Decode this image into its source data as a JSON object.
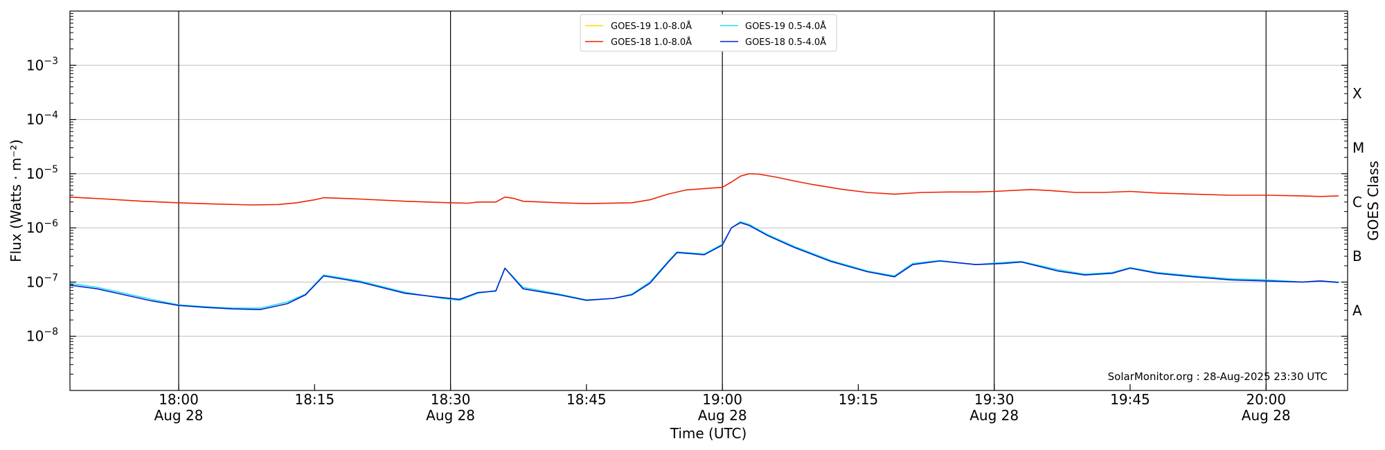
{
  "chart_data": {
    "type": "line",
    "title": "",
    "xlabel": "Time (UTC)",
    "ylabel": "Flux (Watts · m⁻²)",
    "ylabel_right": "GOES Class",
    "y_scale": "log",
    "ylim": [
      1e-09,
      0.01
    ],
    "xlim": [
      "2025-08-28 17:48",
      "2025-08-28 20:09"
    ],
    "grid": "horizontal at decades",
    "legend_position": "top-center",
    "credit": "SolarMonitor.org : 28-Aug-2025 23:30 UTC",
    "y_ticks": [
      {
        "value": 1e-08,
        "base": "10",
        "exp": "−8"
      },
      {
        "value": 1e-07,
        "base": "10",
        "exp": "−7"
      },
      {
        "value": 1e-06,
        "base": "10",
        "exp": "−6"
      },
      {
        "value": 1e-05,
        "base": "10",
        "exp": "−5"
      },
      {
        "value": 0.0001,
        "base": "10",
        "exp": "−4"
      },
      {
        "value": 0.001,
        "base": "10",
        "exp": "−3"
      }
    ],
    "x_ticks": [
      {
        "time": "2025-08-28 18:00",
        "line1": "18:00",
        "line2": "Aug 28"
      },
      {
        "time": "2025-08-28 18:15",
        "line1": "18:15",
        "line2": ""
      },
      {
        "time": "2025-08-28 18:30",
        "line1": "18:30",
        "line2": "Aug 28"
      },
      {
        "time": "2025-08-28 18:45",
        "line1": "18:45",
        "line2": ""
      },
      {
        "time": "2025-08-28 19:00",
        "line1": "19:00",
        "line2": "Aug 28"
      },
      {
        "time": "2025-08-28 19:15",
        "line1": "19:15",
        "line2": ""
      },
      {
        "time": "2025-08-28 19:30",
        "line1": "19:30",
        "line2": "Aug 28"
      },
      {
        "time": "2025-08-28 19:45",
        "line1": "19:45",
        "line2": ""
      },
      {
        "time": "2025-08-28 20:00",
        "line1": "20:00",
        "line2": "Aug 28"
      }
    ],
    "vertical_lines": [
      "2025-08-28 18:00",
      "2025-08-28 18:30",
      "2025-08-28 19:00",
      "2025-08-28 19:30",
      "2025-08-28 20:00"
    ],
    "goes_classes": [
      {
        "label": "X",
        "flux": 0.0003
      },
      {
        "label": "M",
        "flux": 3e-05
      },
      {
        "label": "C",
        "flux": 3e-06
      },
      {
        "label": "B",
        "flux": 3e-07
      },
      {
        "label": "A",
        "flux": 3e-08
      }
    ],
    "series": [
      {
        "name": "GOES-19 1.0-8.0Å",
        "color": "#ffd700",
        "x": [],
        "values": []
      },
      {
        "name": "GOES-18 1.0-8.0Å",
        "color": "#ee2200",
        "x": [
          "2025-08-28 17:48",
          "2025-08-28 17:52",
          "2025-08-28 17:56",
          "2025-08-28 18:00",
          "2025-08-28 18:04",
          "2025-08-28 18:08",
          "2025-08-28 18:11",
          "2025-08-28 18:13",
          "2025-08-28 18:15",
          "2025-08-28 18:16",
          "2025-08-28 18:20",
          "2025-08-28 18:25",
          "2025-08-28 18:30",
          "2025-08-28 18:32",
          "2025-08-28 18:33",
          "2025-08-28 18:35",
          "2025-08-28 18:36",
          "2025-08-28 18:37",
          "2025-08-28 18:38",
          "2025-08-28 18:42",
          "2025-08-28 18:45",
          "2025-08-28 18:50",
          "2025-08-28 18:52",
          "2025-08-28 18:54",
          "2025-08-28 18:56",
          "2025-08-28 18:58",
          "2025-08-28 19:00",
          "2025-08-28 19:01",
          "2025-08-28 19:02",
          "2025-08-28 19:03",
          "2025-08-28 19:04",
          "2025-08-28 19:06",
          "2025-08-28 19:08",
          "2025-08-28 19:10",
          "2025-08-28 19:13",
          "2025-08-28 19:16",
          "2025-08-28 19:19",
          "2025-08-28 19:22",
          "2025-08-28 19:25",
          "2025-08-28 19:28",
          "2025-08-28 19:30",
          "2025-08-28 19:34",
          "2025-08-28 19:36",
          "2025-08-28 19:39",
          "2025-08-28 19:42",
          "2025-08-28 19:45",
          "2025-08-28 19:48",
          "2025-08-28 19:52",
          "2025-08-28 19:56",
          "2025-08-28 20:00",
          "2025-08-28 20:04",
          "2025-08-28 20:06",
          "2025-08-28 20:08"
        ],
        "values": [
          3.7e-06,
          3.4e-06,
          3.1e-06,
          2.9e-06,
          2.75e-06,
          2.65e-06,
          2.7e-06,
          2.9e-06,
          3.3e-06,
          3.6e-06,
          3.4e-06,
          3.1e-06,
          2.9e-06,
          2.85e-06,
          3e-06,
          3e-06,
          3.7e-06,
          3.5e-06,
          3.1e-06,
          2.9e-06,
          2.8e-06,
          2.9e-06,
          3.3e-06,
          4.2e-06,
          5e-06,
          5.3e-06,
          5.6e-06,
          7e-06,
          9e-06,
          1e-05,
          9.8e-06,
          8.6e-06,
          7.3e-06,
          6.3e-06,
          5.2e-06,
          4.5e-06,
          4.2e-06,
          4.5e-06,
          4.6e-06,
          4.6e-06,
          4.7e-06,
          5.1e-06,
          4.9e-06,
          4.5e-06,
          4.5e-06,
          4.7e-06,
          4.4e-06,
          4.2e-06,
          4e-06,
          4e-06,
          3.9e-06,
          3.8e-06,
          3.9e-06
        ]
      },
      {
        "name": "GOES-19 0.5-4.0Å",
        "color": "#22ddee",
        "x": [
          "2025-08-28 17:48",
          "2025-08-28 17:51",
          "2025-08-28 17:54",
          "2025-08-28 17:57",
          "2025-08-28 18:00",
          "2025-08-28 18:03",
          "2025-08-28 18:06",
          "2025-08-28 18:09",
          "2025-08-28 18:12",
          "2025-08-28 18:14",
          "2025-08-28 18:16",
          "2025-08-28 18:20",
          "2025-08-28 18:25",
          "2025-08-28 18:29",
          "2025-08-28 18:31",
          "2025-08-28 18:33",
          "2025-08-28 18:35",
          "2025-08-28 18:36",
          "2025-08-28 18:38",
          "2025-08-28 18:42",
          "2025-08-28 18:45",
          "2025-08-28 18:48",
          "2025-08-28 18:50",
          "2025-08-28 18:52",
          "2025-08-28 18:54",
          "2025-08-28 18:55",
          "2025-08-28 18:58",
          "2025-08-28 19:00",
          "2025-08-28 19:01",
          "2025-08-28 19:02",
          "2025-08-28 19:03",
          "2025-08-28 19:05",
          "2025-08-28 19:08",
          "2025-08-28 19:12",
          "2025-08-28 19:16",
          "2025-08-28 19:19",
          "2025-08-28 19:21",
          "2025-08-28 19:24",
          "2025-08-28 19:28",
          "2025-08-28 19:31",
          "2025-08-28 19:33",
          "2025-08-28 19:37",
          "2025-08-28 19:40",
          "2025-08-28 19:43",
          "2025-08-28 19:45",
          "2025-08-28 19:48",
          "2025-08-28 19:52",
          "2025-08-28 19:56",
          "2025-08-28 20:00",
          "2025-08-28 20:04",
          "2025-08-28 20:06",
          "2025-08-28 20:08"
        ],
        "values": [
          9.5e-08,
          8e-08,
          6.2e-08,
          4.8e-08,
          3.8e-08,
          3.5e-08,
          3.3e-08,
          3.3e-08,
          4.3e-08,
          6e-08,
          1.35e-07,
          1.05e-07,
          6.5e-08,
          5e-08,
          4.6e-08,
          6.2e-08,
          7e-08,
          1.8e-07,
          8e-08,
          6e-08,
          4.7e-08,
          5e-08,
          6e-08,
          1e-07,
          2.4e-07,
          3.6e-07,
          3.3e-07,
          5e-07,
          1e-06,
          1.3e-06,
          1.15e-06,
          7.5e-07,
          4.5e-07,
          2.5e-07,
          1.6e-07,
          1.3e-07,
          2.2e-07,
          2.5e-07,
          2.1e-07,
          2.3e-07,
          2.4e-07,
          1.7e-07,
          1.4e-07,
          1.5e-07,
          1.85e-07,
          1.5e-07,
          1.3e-07,
          1.15e-07,
          1.1e-07,
          1e-07,
          1.05e-07,
          1e-07
        ]
      },
      {
        "name": "GOES-18 0.5-4.0Å",
        "color": "#0022cc",
        "x": [
          "2025-08-28 17:48",
          "2025-08-28 17:51",
          "2025-08-28 17:54",
          "2025-08-28 17:57",
          "2025-08-28 18:00",
          "2025-08-28 18:03",
          "2025-08-28 18:06",
          "2025-08-28 18:09",
          "2025-08-28 18:12",
          "2025-08-28 18:14",
          "2025-08-28 18:16",
          "2025-08-28 18:20",
          "2025-08-28 18:25",
          "2025-08-28 18:29",
          "2025-08-28 18:31",
          "2025-08-28 18:33",
          "2025-08-28 18:35",
          "2025-08-28 18:36",
          "2025-08-28 18:38",
          "2025-08-28 18:42",
          "2025-08-28 18:45",
          "2025-08-28 18:48",
          "2025-08-28 18:50",
          "2025-08-28 18:52",
          "2025-08-28 18:54",
          "2025-08-28 18:55",
          "2025-08-28 18:58",
          "2025-08-28 19:00",
          "2025-08-28 19:01",
          "2025-08-28 19:02",
          "2025-08-28 19:03",
          "2025-08-28 19:05",
          "2025-08-28 19:08",
          "2025-08-28 19:12",
          "2025-08-28 19:16",
          "2025-08-28 19:19",
          "2025-08-28 19:21",
          "2025-08-28 19:24",
          "2025-08-28 19:28",
          "2025-08-28 19:31",
          "2025-08-28 19:33",
          "2025-08-28 19:37",
          "2025-08-28 19:40",
          "2025-08-28 19:43",
          "2025-08-28 19:45",
          "2025-08-28 19:48",
          "2025-08-28 19:52",
          "2025-08-28 19:56",
          "2025-08-28 20:00",
          "2025-08-28 20:04",
          "2025-08-28 20:06",
          "2025-08-28 20:08"
        ],
        "values": [
          8.8e-08,
          7.5e-08,
          5.8e-08,
          4.5e-08,
          3.7e-08,
          3.4e-08,
          3.2e-08,
          3.1e-08,
          4e-08,
          5.8e-08,
          1.3e-07,
          1e-07,
          6.2e-08,
          5.2e-08,
          4.8e-08,
          6.4e-08,
          6.8e-08,
          1.8e-07,
          7.5e-08,
          5.8e-08,
          4.6e-08,
          5e-08,
          5.8e-08,
          9.5e-08,
          2.3e-07,
          3.5e-07,
          3.2e-07,
          4.8e-07,
          1e-06,
          1.25e-06,
          1.1e-06,
          7.2e-07,
          4.3e-07,
          2.4e-07,
          1.55e-07,
          1.25e-07,
          2.1e-07,
          2.45e-07,
          2.1e-07,
          2.2e-07,
          2.35e-07,
          1.6e-07,
          1.35e-07,
          1.45e-07,
          1.8e-07,
          1.45e-07,
          1.25e-07,
          1.1e-07,
          1.05e-07,
          1e-07,
          1.05e-07,
          9.8e-08
        ]
      }
    ]
  }
}
